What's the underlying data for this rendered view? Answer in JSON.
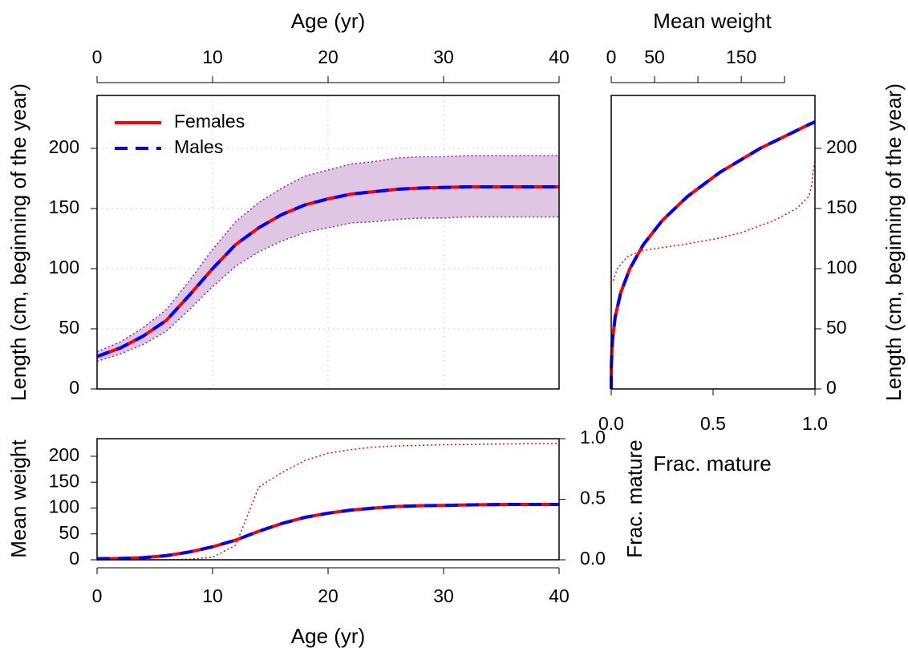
{
  "chart_data": [
    {
      "type": "line",
      "xlabel": "Age (yr)",
      "ylabel": "Length (cm, beginning of the year)",
      "xaxis_side": "top",
      "yaxis_side": "left",
      "x": [
        0,
        2,
        4,
        6,
        8,
        10,
        12,
        14,
        16,
        18,
        20,
        22,
        24,
        26,
        28,
        30,
        32,
        34,
        36,
        38,
        40
      ],
      "xlim": [
        0,
        40
      ],
      "xticks": [
        0,
        10,
        20,
        30,
        40
      ],
      "ylim": [
        0,
        244
      ],
      "yticks": [
        0,
        50,
        100,
        150,
        200
      ],
      "grid": true,
      "legend": "upper left",
      "band": {
        "fill": "#dfc6e3",
        "color": "#8e24aa",
        "upper": [
          31,
          39,
          51,
          66,
          90,
          116,
          139,
          155,
          167,
          177,
          182,
          187,
          189,
          192,
          193,
          193,
          194,
          194,
          194,
          194,
          194
        ],
        "lower": [
          23,
          29,
          37,
          48,
          66,
          85,
          102,
          114,
          123,
          130,
          134,
          138,
          139,
          141,
          142,
          142,
          143,
          143,
          143,
          143,
          143
        ]
      },
      "series": [
        {
          "name": "Females",
          "color": "#ff0000",
          "linestyle": "solid",
          "values": [
            27,
            34,
            44,
            57,
            78,
            100,
            120,
            134,
            145,
            153,
            158,
            162,
            164,
            166,
            167,
            167.5,
            168,
            168,
            168,
            168,
            168
          ]
        },
        {
          "name": "Males",
          "color": "#0000ff",
          "linestyle": "dashed",
          "values": [
            27,
            34,
            44,
            57,
            78,
            100,
            120,
            134,
            145,
            153,
            158,
            162,
            164,
            166,
            167,
            167.5,
            168,
            168,
            168,
            168,
            168
          ]
        }
      ]
    },
    {
      "type": "line",
      "xlabel": "Mean weight",
      "x2label": "Frac. mature",
      "ylabel": "Length (cm, beginning of the year)",
      "xaxis_side": "top",
      "yaxis_side": "right",
      "xlim": [
        0,
        235
      ],
      "xticks": [
        0,
        50,
        {
          "value": 100,
          "label": null
        },
        150,
        {
          "value": 200,
          "label": null
        }
      ],
      "x2lim": [
        0,
        1
      ],
      "x2ticks": [
        {
          "value": 0,
          "label": "0.0"
        },
        0.5,
        {
          "value": 1,
          "label": "1.0"
        }
      ],
      "ylim": [
        0,
        244
      ],
      "yticks": [
        0,
        50,
        100,
        150,
        200
      ],
      "series": [
        {
          "color": "#ff0000",
          "linestyle": "solid",
          "x": [
            0,
            0.19,
            1.37,
            4.6,
            11.0,
            21.5,
            37.1,
            58.9,
            87.9,
            125.2,
            171.8,
            228.7,
            235
          ],
          "y": [
            0,
            20,
            40,
            60,
            80,
            100,
            120,
            140,
            160,
            180,
            200,
            220,
            222
          ]
        },
        {
          "color": "#0000ff",
          "linestyle": "dashed",
          "x": [
            0,
            0.19,
            1.37,
            4.6,
            11.0,
            21.5,
            37.1,
            58.9,
            87.9,
            125.2,
            171.8,
            228.7,
            235
          ],
          "y": [
            0,
            20,
            40,
            60,
            80,
            100,
            120,
            140,
            160,
            180,
            200,
            220,
            222
          ]
        },
        {
          "color": "#ff0000",
          "linestyle": "dotted",
          "axis": "x2",
          "x": [
            0.01,
            0.03,
            0.08,
            0.15,
            0.35,
            0.52,
            0.64,
            0.8,
            0.91,
            0.97,
            0.985,
            0.99,
            1.0
          ],
          "y": [
            90,
            100,
            110,
            115,
            120,
            125,
            130,
            140,
            150,
            160,
            170,
            180,
            190
          ]
        }
      ]
    },
    {
      "type": "line",
      "xlabel": "Age (yr)",
      "ylabel": "Mean weight",
      "y2label": "Frac. mature",
      "xaxis_side": "bottom",
      "yaxis_side": "left",
      "x": [
        0,
        2,
        4,
        6,
        8,
        10,
        12,
        14,
        16,
        18,
        20,
        22,
        24,
        26,
        28,
        30,
        32,
        34,
        36,
        38,
        40
      ],
      "xlim": [
        0,
        40
      ],
      "xticks": [
        0,
        10,
        20,
        30,
        40
      ],
      "ylim": [
        0,
        234
      ],
      "yticks": [
        0,
        50,
        100,
        150,
        200
      ],
      "y2lim": [
        0,
        1
      ],
      "y2ticks": [
        {
          "value": 0,
          "label": "0.0"
        },
        0.5,
        {
          "value": 1,
          "label": "1.0"
        }
      ],
      "series": [
        {
          "color": "#ff0000",
          "linestyle": "solid",
          "values": [
            2,
            2.5,
            4,
            8,
            15,
            25,
            38,
            55,
            70,
            82,
            90,
            96,
            100,
            103,
            104.5,
            105,
            106,
            106.5,
            107,
            107,
            107
          ]
        },
        {
          "color": "#0000ff",
          "linestyle": "dashed",
          "values": [
            2,
            2.5,
            4,
            8,
            15,
            25,
            38,
            55,
            70,
            82,
            90,
            96,
            100,
            103,
            104.5,
            105,
            106,
            106.5,
            107,
            107,
            107
          ]
        },
        {
          "color": "#ff0000",
          "linestyle": "dotted",
          "axis": "y2",
          "values": [
            0,
            0,
            0,
            0,
            0.005,
            0.02,
            0.12,
            0.6,
            0.72,
            0.82,
            0.88,
            0.91,
            0.93,
            0.94,
            0.945,
            0.95,
            0.952,
            0.955,
            0.957,
            0.958,
            0.96
          ]
        }
      ]
    }
  ]
}
